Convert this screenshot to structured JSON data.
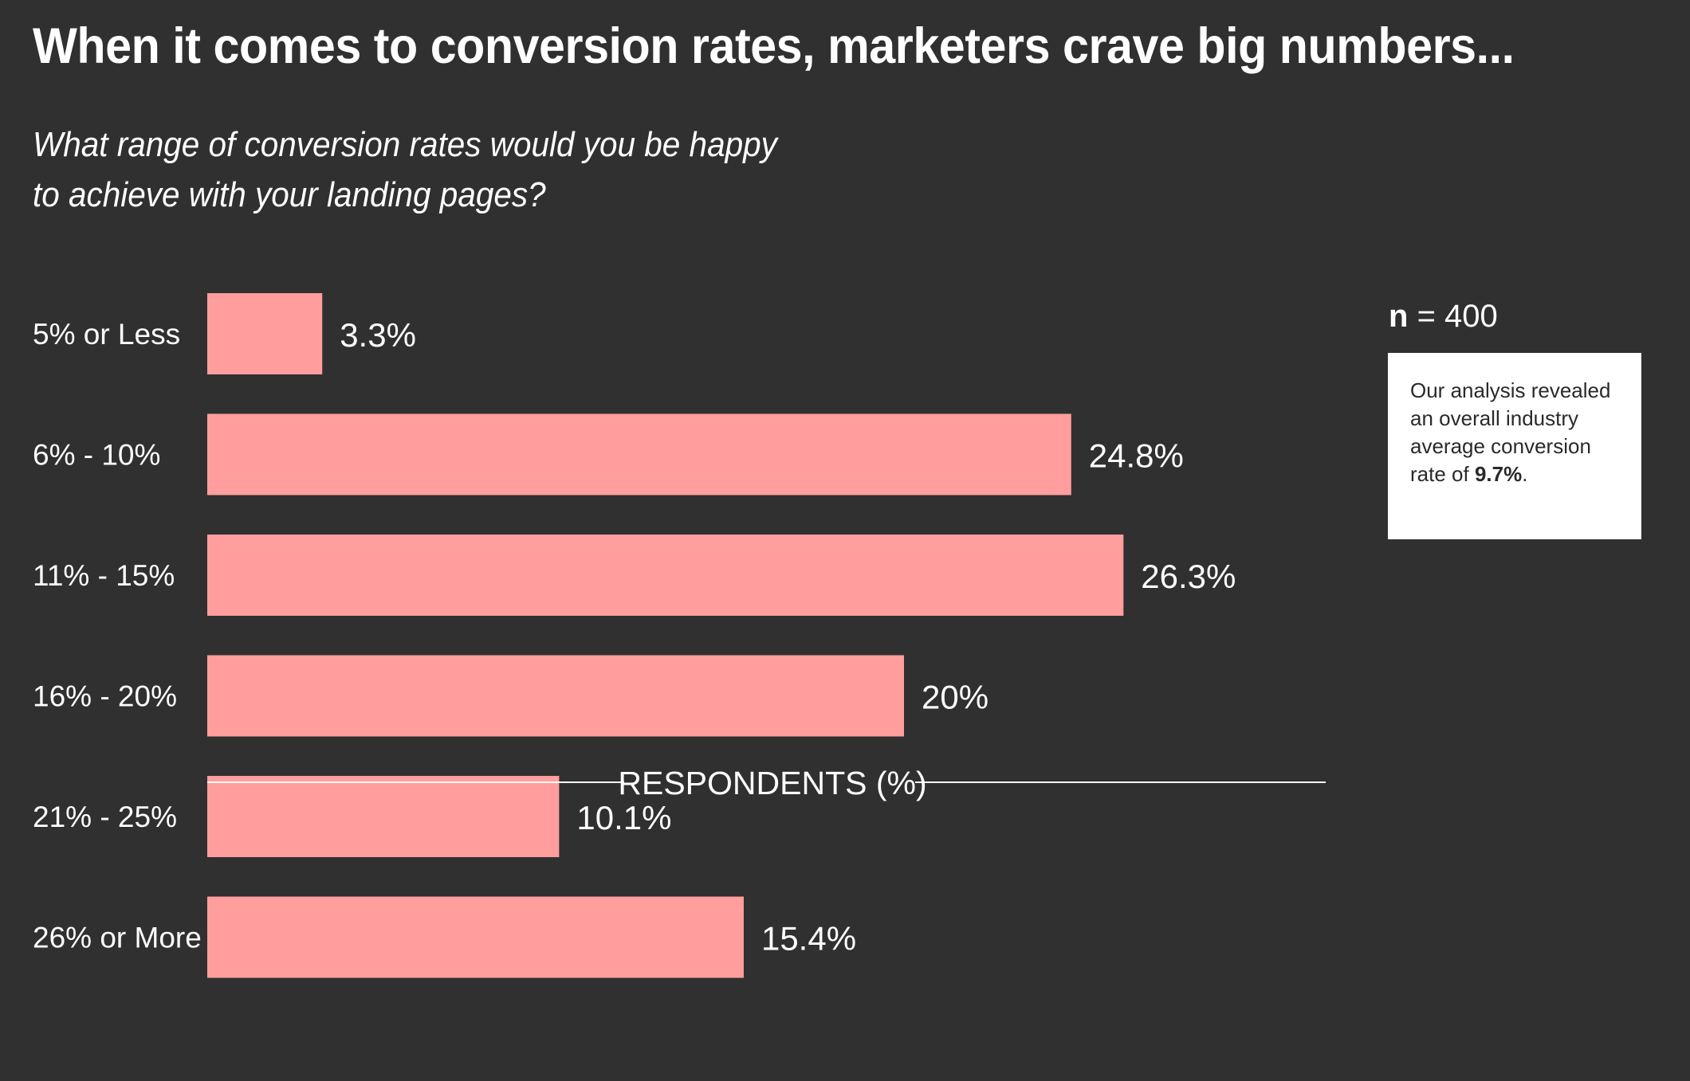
{
  "header": {
    "title": "When it comes to conversion rates, marketers crave big numbers...",
    "subtitle_line1": "What range of conversion rates would you be happy",
    "subtitle_line2": "to achieve with your landing pages?"
  },
  "sidebar": {
    "n_prefix": "n",
    "n_value": "= 400",
    "note_text": "Our analysis revealed an overall industry average conversion rate of",
    "note_highlight": "9.7%",
    "note_suffix": "."
  },
  "colors": {
    "background": "#303030",
    "bar": "#ff9e9d",
    "text": "#ffffff"
  },
  "chart_data": {
    "type": "bar",
    "orientation": "horizontal",
    "categories": [
      "5% or Less",
      "6% - 10%",
      "11% - 15%",
      "16% - 20%",
      "21% - 25%",
      "26% or More"
    ],
    "values": [
      3.3,
      24.8,
      26.3,
      20,
      10.1,
      15.4
    ],
    "value_labels": [
      "3.3%",
      "24.8%",
      "26.3%",
      "20%",
      "10.1%",
      "15.4%"
    ],
    "xlabel": "RESPONDENTS (%)",
    "ylabel": "",
    "xlim": [
      0,
      30
    ],
    "grid": false,
    "legend": "none"
  }
}
